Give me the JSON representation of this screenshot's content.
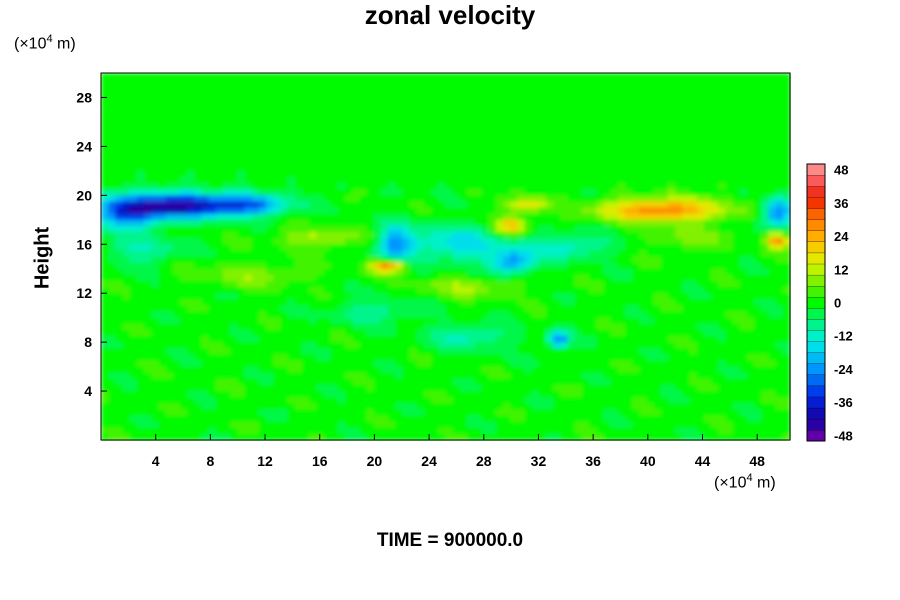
{
  "chart_data": {
    "type": "heatmap",
    "title": "zonal velocity",
    "ylabel": "Height",
    "xlabel": "",
    "x_unit": {
      "prefix": "(×10",
      "exp": "4",
      "suffix": " m)"
    },
    "y_unit": {
      "prefix": "(×10",
      "exp": "4",
      "suffix": " m)"
    },
    "footer": "TIME = 900000.0",
    "xlim": [
      0,
      50.4
    ],
    "ylim": [
      0,
      30
    ],
    "xticks": [
      4,
      8,
      12,
      16,
      20,
      24,
      28,
      32,
      36,
      40,
      44,
      48
    ],
    "yticks": [
      4,
      8,
      12,
      16,
      20,
      24,
      28
    ],
    "colorbar": {
      "range": [
        -50,
        50
      ],
      "levels": [
        -48,
        -36,
        -24,
        -12,
        0,
        12,
        24,
        36,
        48
      ],
      "step": 4
    },
    "features": [
      {
        "x": 6,
        "y": 19.2,
        "v": -40,
        "sx": 4.5,
        "sy": 1.0
      },
      {
        "x": 2,
        "y": 18.5,
        "v": -28,
        "sx": 2.5,
        "sy": 1.2
      },
      {
        "x": 11,
        "y": 19.2,
        "v": -20,
        "sx": 3.0,
        "sy": 0.8
      },
      {
        "x": 21.5,
        "y": 16,
        "v": -22,
        "sx": 1.2,
        "sy": 1.5
      },
      {
        "x": 26,
        "y": 16,
        "v": -16,
        "sx": 4.0,
        "sy": 1.5
      },
      {
        "x": 30,
        "y": 14.5,
        "v": -22,
        "sx": 1.5,
        "sy": 1.0
      },
      {
        "x": 34,
        "y": 15.8,
        "v": -14,
        "sx": 3.0,
        "sy": 1.0
      },
      {
        "x": 49.5,
        "y": 18.5,
        "v": -26,
        "sx": 1.2,
        "sy": 1.2
      },
      {
        "x": 3,
        "y": 15.5,
        "v": -10,
        "sx": 3.0,
        "sy": 1.2
      },
      {
        "x": 33.5,
        "y": 8.2,
        "v": -26,
        "sx": 0.8,
        "sy": 0.7
      },
      {
        "x": 27,
        "y": 8.5,
        "v": -12,
        "sx": 3.0,
        "sy": 1.0
      },
      {
        "x": 20,
        "y": 10.5,
        "v": -10,
        "sx": 3.0,
        "sy": 1.0
      },
      {
        "x": 41,
        "y": 18.8,
        "v": 30,
        "sx": 4.5,
        "sy": 0.9
      },
      {
        "x": 21,
        "y": 14.2,
        "v": 32,
        "sx": 1.3,
        "sy": 0.5
      },
      {
        "x": 30,
        "y": 17.5,
        "v": 22,
        "sx": 1.2,
        "sy": 0.8
      },
      {
        "x": 31,
        "y": 19.2,
        "v": 18,
        "sx": 1.5,
        "sy": 0.6
      },
      {
        "x": 49.5,
        "y": 16.3,
        "v": 30,
        "sx": 0.8,
        "sy": 0.6
      },
      {
        "x": 16,
        "y": 16.5,
        "v": 12,
        "sx": 3.0,
        "sy": 0.8
      },
      {
        "x": 27,
        "y": 12.5,
        "v": 10,
        "sx": 3.5,
        "sy": 0.8
      },
      {
        "x": 43,
        "y": 16.5,
        "v": 8,
        "sx": 3.0,
        "sy": 1.0
      },
      {
        "x": 11,
        "y": 13.5,
        "v": 8,
        "sx": 4.0,
        "sy": 1.0
      }
    ]
  }
}
